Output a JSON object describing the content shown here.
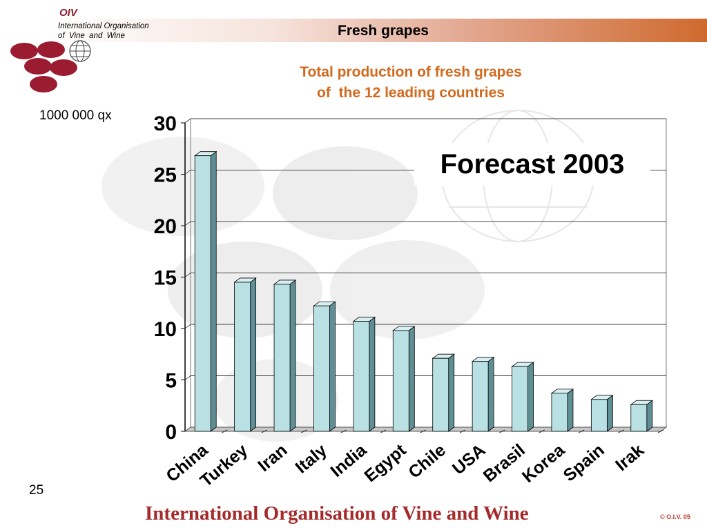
{
  "header": {
    "oiv_mark": "OIV",
    "org_line1": "International Organisation",
    "org_line2": "of  Vine  and  Wine",
    "title": "Fresh grapes"
  },
  "subtitle": {
    "line1": "Total production of fresh grapes",
    "line2": "of  the 12 leading countries"
  },
  "unit_label": "1000 000 qx",
  "annotation": "Forecast 2003",
  "page_number": "25",
  "footer": "International Organisation of Vine and Wine",
  "copyright": "© O.I.V. 05",
  "colors": {
    "bar_front": "#b9e0e3",
    "bar_side": "#5f8f94",
    "bar_top": "#d9f0f2",
    "title_orange": "#d2691e",
    "footer_red": "#a52a2a",
    "logo_wine": "#9b1b30"
  },
  "chart_data": {
    "type": "bar",
    "categories": [
      "China",
      "Turkey",
      "Iran",
      "Italy",
      "India",
      "Egypt",
      "Chile",
      "USA",
      "Brasil",
      "Korea",
      "Spain",
      "Irak"
    ],
    "values": [
      26.8,
      14.5,
      14.3,
      12.2,
      10.7,
      9.8,
      7.1,
      6.8,
      6.3,
      3.7,
      3.1,
      2.6
    ],
    "ylim": [
      0,
      30
    ],
    "yticks": [
      "0",
      "5",
      "10",
      "15",
      "20",
      "25",
      "30"
    ],
    "ylabel": "1000 000 qx",
    "grid": true
  }
}
